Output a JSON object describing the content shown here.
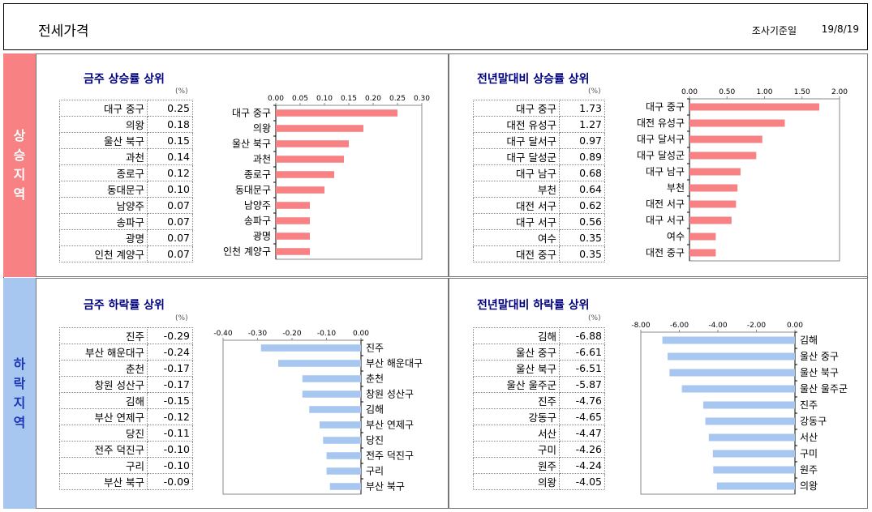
{
  "header": {
    "title": "전세가격",
    "date_label": "조사기준일",
    "date_value": "19/8/19"
  },
  "bands": {
    "up": [
      "상",
      "승",
      "지",
      "역"
    ],
    "down": [
      "하",
      "락",
      "지",
      "역"
    ]
  },
  "unit": "(%)",
  "colors": {
    "up_bar": "#f78183",
    "down_bar": "#a7c7f0",
    "title": "#00007f"
  },
  "panels": {
    "weekly_up": {
      "title": "금주 상승률 상위"
    },
    "yearly_up": {
      "title": "전년말대비 상승률 상위"
    },
    "weekly_down": {
      "title": "금주 하락률 상위"
    },
    "yearly_down": {
      "title": "전년말대비 하락률 상위"
    }
  },
  "chart_data": [
    {
      "id": "weekly_up",
      "type": "bar",
      "orientation": "horizontal",
      "categories": [
        "대구 중구",
        "의왕",
        "울산 북구",
        "과천",
        "종로구",
        "동대문구",
        "남양주",
        "송파구",
        "광명",
        "인천 계양구"
      ],
      "values": [
        0.25,
        0.18,
        0.15,
        0.14,
        0.12,
        0.1,
        0.07,
        0.07,
        0.07,
        0.07
      ],
      "labels": [
        "0.25",
        "0.18",
        "0.15",
        "0.14",
        "0.12",
        "0.10",
        "0.07",
        "0.07",
        "0.07",
        "0.07"
      ],
      "xlim": [
        0,
        0.3
      ],
      "ticks": [
        "0.00",
        "0.05",
        "0.10",
        "0.15",
        "0.20",
        "0.25",
        "0.30"
      ]
    },
    {
      "id": "yearly_up",
      "type": "bar",
      "orientation": "horizontal",
      "categories": [
        "대구 중구",
        "대전 유성구",
        "대구 달서구",
        "대구 달성군",
        "대구 남구",
        "부천",
        "대전 서구",
        "대구 서구",
        "여수",
        "대전 중구"
      ],
      "values": [
        1.73,
        1.27,
        0.97,
        0.89,
        0.68,
        0.64,
        0.62,
        0.56,
        0.35,
        0.35
      ],
      "labels": [
        "1.73",
        "1.27",
        "0.97",
        "0.89",
        "0.68",
        "0.64",
        "0.62",
        "0.56",
        "0.35",
        "0.35"
      ],
      "xlim": [
        0,
        2.0
      ],
      "ticks": [
        "0.00",
        "0.50",
        "1.00",
        "1.50",
        "2.00"
      ]
    },
    {
      "id": "weekly_down",
      "type": "bar",
      "orientation": "horizontal",
      "categories": [
        "진주",
        "부산 해운대구",
        "춘천",
        "창원 성산구",
        "김해",
        "부산 연제구",
        "당진",
        "전주 덕진구",
        "구리",
        "부산 북구"
      ],
      "values": [
        -0.29,
        -0.24,
        -0.17,
        -0.17,
        -0.15,
        -0.12,
        -0.11,
        -0.1,
        -0.1,
        -0.09
      ],
      "labels": [
        "-0.29",
        "-0.24",
        "-0.17",
        "-0.17",
        "-0.15",
        "-0.12",
        "-0.11",
        "-0.10",
        "-0.10",
        "-0.09"
      ],
      "xlim": [
        -0.4,
        0
      ],
      "ticks": [
        "-0.40",
        "-0.30",
        "-0.20",
        "-0.10",
        "0.00"
      ]
    },
    {
      "id": "yearly_down",
      "type": "bar",
      "orientation": "horizontal",
      "categories": [
        "김해",
        "울산 중구",
        "울산 북구",
        "울산 울주군",
        "진주",
        "강동구",
        "서산",
        "구미",
        "원주",
        "의왕"
      ],
      "values": [
        -6.88,
        -6.61,
        -6.51,
        -5.87,
        -4.76,
        -4.65,
        -4.47,
        -4.26,
        -4.24,
        -4.05
      ],
      "labels": [
        "-6.88",
        "-6.61",
        "-6.51",
        "-5.87",
        "-4.76",
        "-4.65",
        "-4.47",
        "-4.26",
        "-4.24",
        "-4.05"
      ],
      "xlim": [
        -8.0,
        0
      ],
      "ticks": [
        "-8.00",
        "-6.00",
        "-4.00",
        "-2.00",
        "0.00"
      ]
    }
  ]
}
